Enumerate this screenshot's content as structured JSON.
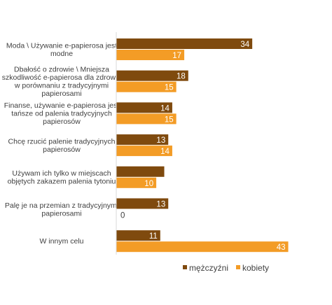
{
  "chart_data": {
    "type": "bar",
    "orientation": "horizontal",
    "categories": [
      [
        "Moda \\ Używanie e-papierosa jest",
        "modne"
      ],
      [
        "Dbałość o zdrowie \\ Mniejsza",
        "szkodliwość e-papierosa dla zdrowia",
        "w porównaniu z tradycyjnymi",
        "papierosami"
      ],
      [
        "Finanse, używanie e-papierosa jest",
        "tańsze od palenia tradycyjnych",
        "papierosów"
      ],
      [
        "Chcę rzucić palenie tradycyjnych",
        "papierosów"
      ],
      [
        "Używam ich tylko w miejscach",
        "objętych zakazem palenia tytoniu"
      ],
      [
        "Palę je na przemian z tradycyjnymi",
        "papierosami"
      ],
      [
        "W innym celu"
      ]
    ],
    "series": [
      {
        "name": "mężczyźni",
        "color": "#7f4a0e",
        "values": [
          34,
          18,
          14,
          13,
          12,
          13,
          11
        ],
        "labels": [
          "34",
          "18",
          "14",
          "13",
          "",
          "13",
          "11"
        ]
      },
      {
        "name": "kobiety",
        "color": "#f39c26",
        "values": [
          17,
          15,
          15,
          14,
          10,
          0,
          43
        ],
        "labels": [
          "17",
          "15",
          "15",
          "14",
          "10",
          "0",
          "43"
        ]
      }
    ],
    "xlim": [
      0,
      50
    ],
    "grid": false,
    "legend_position": "bottom-right"
  }
}
